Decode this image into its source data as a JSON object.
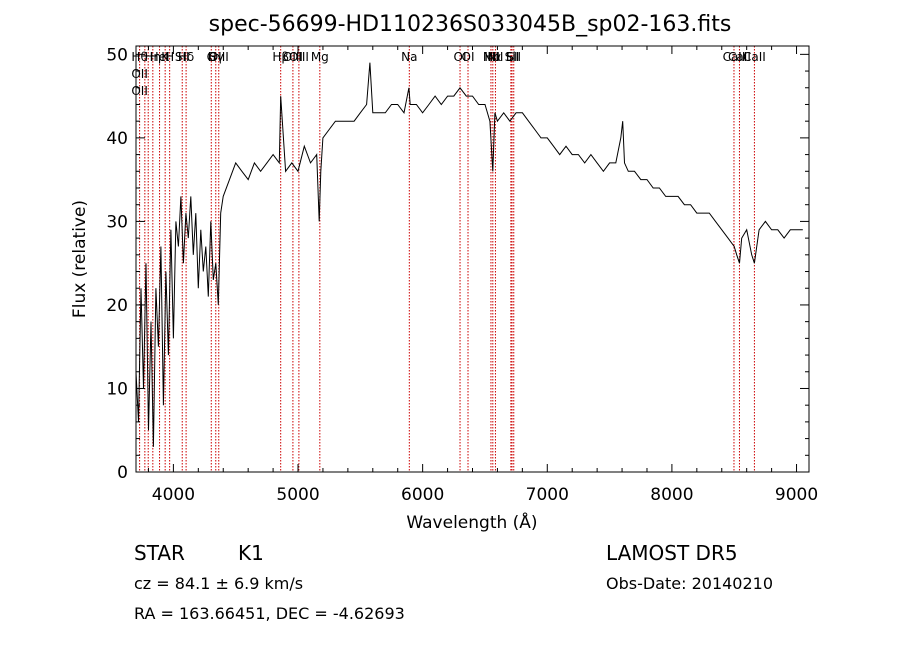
{
  "chart_data": {
    "type": "line",
    "title": "spec-56699-HD110236S033045B_sp02-163.fits",
    "xlabel": "Wavelength (Å)",
    "ylabel": "Flux (relative)",
    "xlim": [
      3700,
      9100
    ],
    "ylim": [
      0,
      51
    ],
    "xticks": [
      4000,
      5000,
      6000,
      7000,
      8000,
      9000
    ],
    "yticks": [
      0,
      10,
      20,
      30,
      40,
      50
    ],
    "grid": false,
    "line_color": "#000000",
    "marker_color": "#cc0000",
    "series": [
      {
        "x": [
          3700,
          3720,
          3740,
          3760,
          3780,
          3800,
          3820,
          3840,
          3860,
          3880,
          3900,
          3920,
          3940,
          3960,
          3980,
          4000,
          4020,
          4040,
          4060,
          4080,
          4100,
          4120,
          4140,
          4160,
          4180,
          4200,
          4220,
          4240,
          4260,
          4280,
          4300,
          4320,
          4340,
          4360,
          4380,
          4400,
          4450,
          4500,
          4550,
          4600,
          4650,
          4700,
          4750,
          4800,
          4850,
          4861,
          4900,
          4950,
          5000,
          5050,
          5100,
          5150,
          5170,
          5183,
          5200,
          5250,
          5300,
          5350,
          5400,
          5450,
          5500,
          5550,
          5577,
          5600,
          5650,
          5700,
          5750,
          5800,
          5850,
          5890,
          5900,
          5950,
          6000,
          6050,
          6100,
          6150,
          6200,
          6250,
          6300,
          6350,
          6400,
          6450,
          6500,
          6540,
          6563,
          6580,
          6600,
          6650,
          6700,
          6750,
          6800,
          6850,
          6900,
          6950,
          7000,
          7050,
          7100,
          7150,
          7200,
          7250,
          7300,
          7350,
          7400,
          7450,
          7500,
          7550,
          7590,
          7605,
          7620,
          7650,
          7700,
          7750,
          7800,
          7850,
          7900,
          7950,
          8000,
          8050,
          8100,
          8150,
          8200,
          8250,
          8300,
          8350,
          8400,
          8450,
          8500,
          8520,
          8542,
          8560,
          8600,
          8640,
          8662,
          8700,
          8750,
          8800,
          8850,
          8900,
          8950,
          9000,
          9050
        ],
        "y": [
          12,
          6,
          22,
          10,
          25,
          5,
          18,
          3,
          22,
          15,
          27,
          8,
          24,
          14,
          29,
          16,
          30,
          27,
          33,
          25,
          31,
          28,
          33,
          26,
          31,
          22,
          29,
          24,
          27,
          21,
          30,
          23,
          25,
          20,
          31,
          33,
          35,
          37,
          36,
          35,
          37,
          36,
          37,
          38,
          37,
          45,
          36,
          37,
          36,
          39,
          37,
          38,
          30,
          36,
          40,
          41,
          42,
          42,
          42,
          42,
          43,
          44,
          49,
          43,
          43,
          43,
          44,
          44,
          43,
          46,
          44,
          44,
          43,
          44,
          45,
          44,
          45,
          45,
          46,
          45,
          45,
          44,
          44,
          42,
          36,
          43,
          42,
          43,
          42,
          43,
          43,
          42,
          41,
          40,
          40,
          39,
          38,
          39,
          38,
          38,
          37,
          38,
          37,
          36,
          37,
          37,
          40,
          42,
          37,
          36,
          36,
          35,
          35,
          34,
          34,
          33,
          33,
          33,
          32,
          32,
          31,
          31,
          31,
          30,
          29,
          28,
          27,
          26,
          25,
          28,
          29,
          26,
          25,
          29,
          30,
          29,
          29,
          28,
          29,
          29,
          29
        ]
      }
    ],
    "line_markers": [
      {
        "x": 3729,
        "labels": [
          "Hθ",
          "OII",
          "OII"
        ]
      },
      {
        "x": 3771,
        "labels": [
          ""
        ]
      },
      {
        "x": 3798,
        "labels": [
          ""
        ]
      },
      {
        "x": 3835,
        "labels": [
          "Hη"
        ]
      },
      {
        "x": 3889,
        "labels": [
          "HeI"
        ]
      },
      {
        "x": 3934,
        "labels": [
          "K"
        ]
      },
      {
        "x": 3970,
        "labels": [
          "H"
        ]
      },
      {
        "x": 4071,
        "labels": [
          "SII"
        ]
      },
      {
        "x": 4102,
        "labels": [
          "Hδ"
        ]
      },
      {
        "x": 4304,
        "labels": [
          "G"
        ]
      },
      {
        "x": 4340,
        "labels": [
          "Hγ"
        ]
      },
      {
        "x": 4364,
        "labels": [
          "OIII"
        ]
      },
      {
        "x": 4861,
        "labels": [
          "Hβ"
        ]
      },
      {
        "x": 4959,
        "labels": [
          "OIII"
        ]
      },
      {
        "x": 5007,
        "labels": [
          "OIII"
        ]
      },
      {
        "x": 5175,
        "labels": [
          "Mg"
        ]
      },
      {
        "x": 5893,
        "labels": [
          "Na"
        ]
      },
      {
        "x": 6300,
        "labels": [
          "OI"
        ]
      },
      {
        "x": 6364,
        "labels": [
          "OI"
        ]
      },
      {
        "x": 6548,
        "labels": [
          "NII"
        ]
      },
      {
        "x": 6563,
        "labels": [
          "Hα"
        ]
      },
      {
        "x": 6584,
        "labels": [
          "NII"
        ]
      },
      {
        "x": 6708,
        "labels": [
          "Li"
        ]
      },
      {
        "x": 6717,
        "labels": [
          "SII"
        ]
      },
      {
        "x": 6731,
        "labels": [
          "SII"
        ]
      },
      {
        "x": 8498,
        "labels": [
          "CaII"
        ]
      },
      {
        "x": 8542,
        "labels": [
          "CaII"
        ]
      },
      {
        "x": 8662,
        "labels": [
          "CaII"
        ]
      }
    ]
  },
  "info": {
    "class_label": "STAR",
    "subclass": "K1",
    "survey": "LAMOST DR5",
    "redshift_text": "cz = 84.1 ± 6.9 km/s",
    "obs_date_text": "Obs-Date: 20140210",
    "coords_text": "RA = 163.66451, DEC =  -4.62693"
  }
}
